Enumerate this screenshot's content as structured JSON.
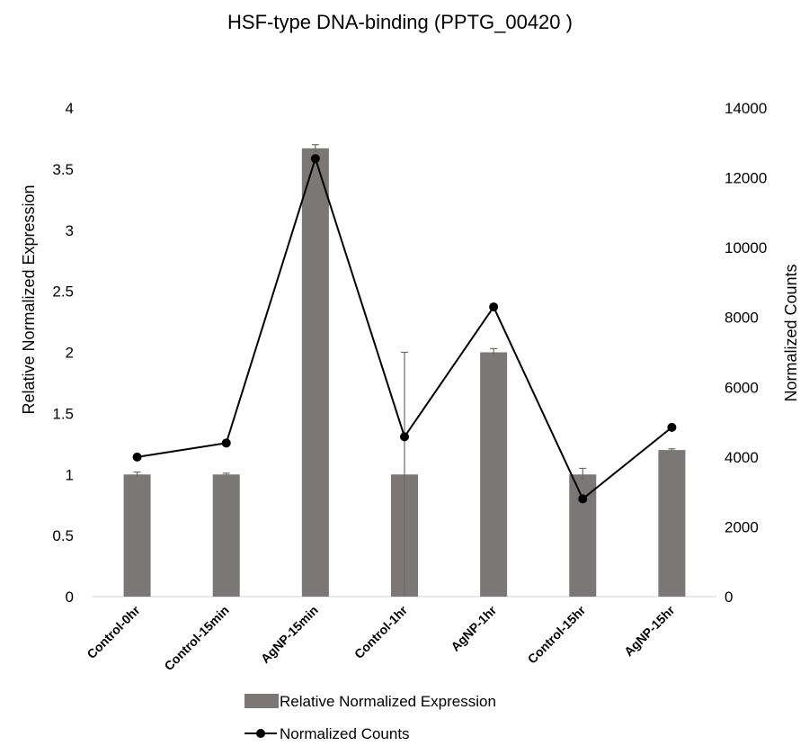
{
  "chart_data": {
    "type": "bar",
    "title": "HSF-type DNA-binding (PPTG_00420 )",
    "categories": [
      "Control-0hr",
      "Control-15min",
      "AgNP-15min",
      "Control-1hr",
      "AgNP-1hr",
      "Control-15hr",
      "AgNP-15hr"
    ],
    "series": [
      {
        "name": "Relative Normalized Expression",
        "type": "bar",
        "axis": "left",
        "color": "#7a7776",
        "values": [
          1.0,
          1.0,
          3.67,
          1.0,
          2.0,
          1.0,
          1.2
        ],
        "error": [
          0.02,
          0.01,
          0.03,
          1.0,
          0.03,
          0.05,
          0.01
        ]
      },
      {
        "name": "Normalized Counts",
        "type": "line",
        "axis": "right",
        "color": "#000000",
        "values": [
          4000,
          4400,
          12550,
          4580,
          8300,
          2800,
          4850
        ]
      }
    ],
    "ylabel": "Relative Normalized Expression",
    "y2label": "Normalized Counts",
    "ylim": [
      0,
      4
    ],
    "yticks": [
      "0",
      "0.5",
      "1",
      "1.5",
      "2",
      "2.5",
      "3",
      "3.5",
      "4"
    ],
    "y2lim": [
      0,
      14000
    ],
    "y2ticks": [
      "0",
      "2000",
      "4000",
      "6000",
      "8000",
      "10000",
      "12000",
      "14000"
    ],
    "grid": false,
    "legend": "bottom"
  }
}
